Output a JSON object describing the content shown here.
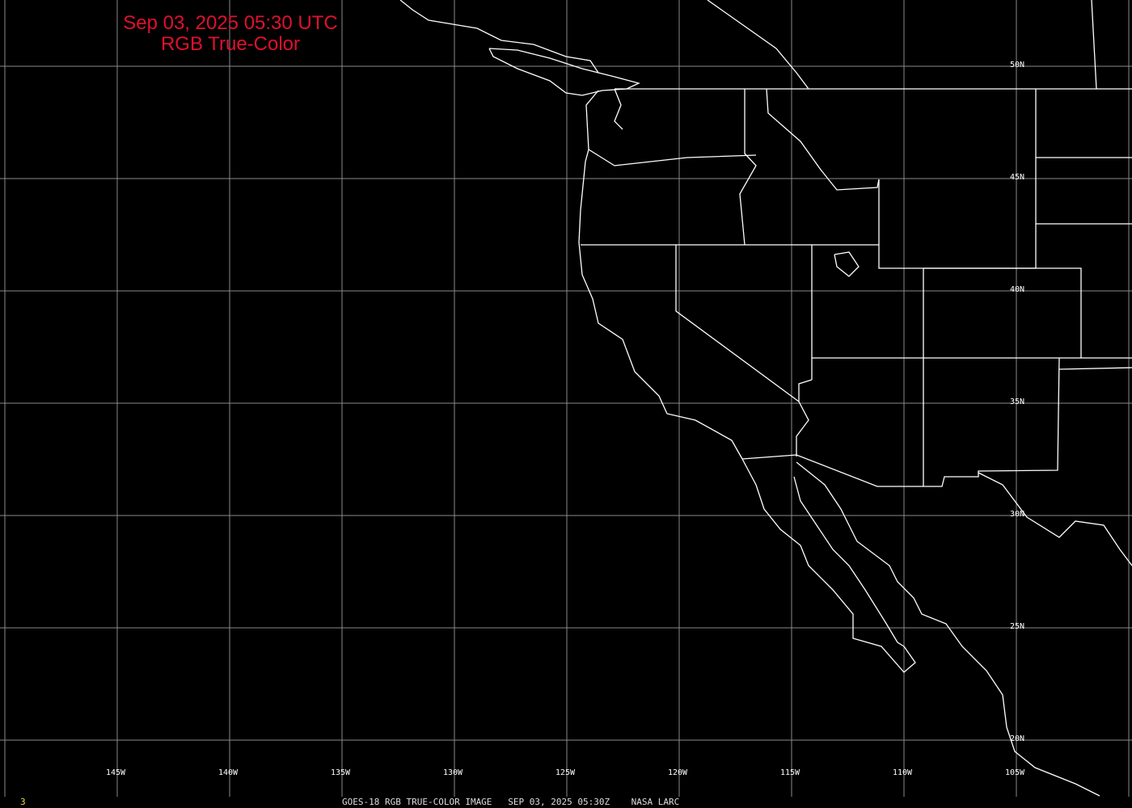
{
  "title": {
    "line1": "Sep 03, 2025 05:30 UTC",
    "line2": "RGB True-Color"
  },
  "colors": {
    "title": "#e0102e",
    "grid": "#8a8a8a",
    "borders": "#ffffff",
    "frame_number": "#e8d84a"
  },
  "longitude_labels": [
    "145W",
    "140W",
    "135W",
    "130W",
    "125W",
    "120W",
    "115W",
    "110W",
    "105W"
  ],
  "latitude_labels": [
    "50N",
    "45N",
    "40N",
    "35N",
    "30N",
    "25N",
    "20N"
  ],
  "frame_number": "3",
  "caption": "GOES-18 RGB TRUE-COLOR IMAGE   SEP 03, 2025 05:30Z    NASA LARC"
}
